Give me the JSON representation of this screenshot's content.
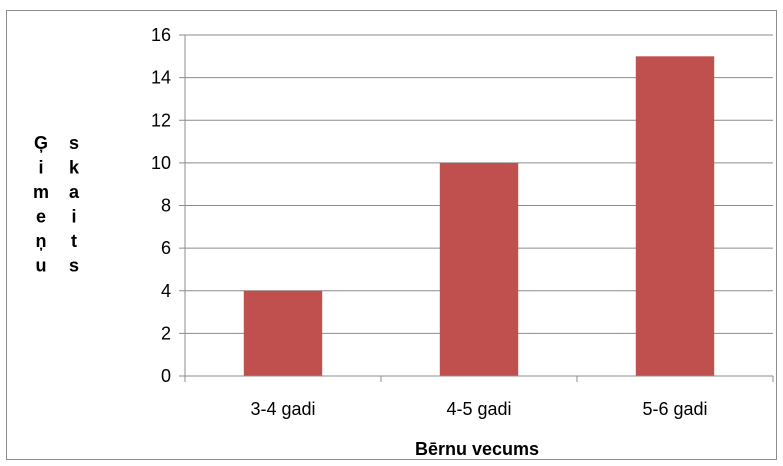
{
  "chart_data": {
    "type": "bar",
    "categories": [
      "3-4 gadi",
      "4-5 gadi",
      "5-6 gadi"
    ],
    "values": [
      4,
      10,
      15
    ],
    "title": "",
    "xlabel": "Bērnu vecums",
    "ylabel": "Ģimeņu skaits",
    "ylabel_columns": [
      [
        "Ģ",
        "i",
        "m",
        "e",
        "ņ",
        "u"
      ],
      [
        "s",
        "k",
        "a",
        "i",
        "t",
        "s"
      ]
    ],
    "ylim": [
      0,
      16
    ],
    "yticks": [
      0,
      2,
      4,
      6,
      8,
      10,
      12,
      14,
      16
    ],
    "bar_color": "#c0504d",
    "grid": true,
    "legend": "none"
  }
}
